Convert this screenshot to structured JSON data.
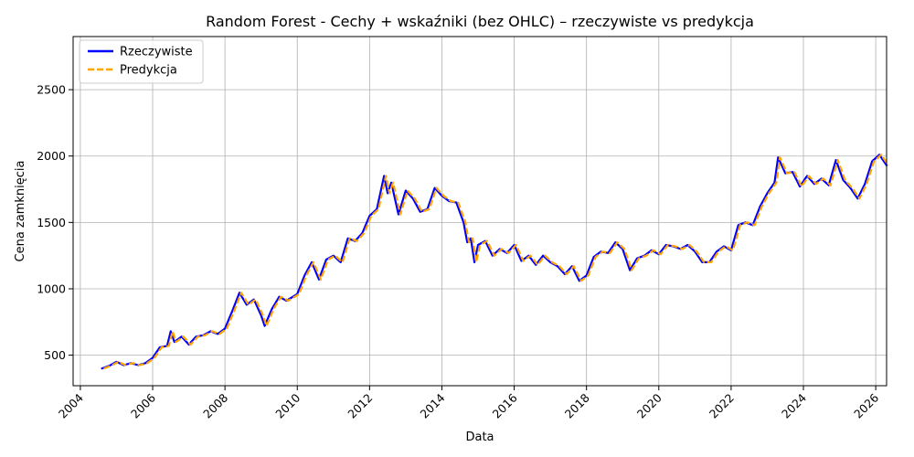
{
  "chart_data": {
    "type": "line",
    "title": "Random Forest - Cechy + wskaźniki (bez OHLC) – rzeczywiste vs predykcja",
    "xlabel": "Data",
    "ylabel": "Cena zamknięcia",
    "xlim": [
      2003.8,
      2026.3
    ],
    "ylim": [
      270,
      2900
    ],
    "x_ticks": [
      2004,
      2006,
      2008,
      2010,
      2012,
      2014,
      2016,
      2018,
      2020,
      2022,
      2024,
      2026
    ],
    "x_tick_labels": [
      "2004",
      "2006",
      "2008",
      "2010",
      "2012",
      "2014",
      "2016",
      "2018",
      "2020",
      "2022",
      "2024",
      "2026"
    ],
    "y_ticks": [
      500,
      1000,
      1500,
      2000,
      2500
    ],
    "y_tick_labels": [
      "500",
      "1000",
      "1500",
      "2000",
      "2500"
    ],
    "grid": true,
    "legend_position": "top-left",
    "series": [
      {
        "name": "Rzeczywiste",
        "color": "#0000ff",
        "style": "solid",
        "points": [
          [
            2004.6,
            400
          ],
          [
            2004.8,
            420
          ],
          [
            2005.0,
            450
          ],
          [
            2005.2,
            425
          ],
          [
            2005.4,
            440
          ],
          [
            2005.6,
            425
          ],
          [
            2005.8,
            440
          ],
          [
            2006.0,
            480
          ],
          [
            2006.2,
            560
          ],
          [
            2006.4,
            570
          ],
          [
            2006.5,
            680
          ],
          [
            2006.6,
            600
          ],
          [
            2006.8,
            640
          ],
          [
            2007.0,
            580
          ],
          [
            2007.2,
            640
          ],
          [
            2007.4,
            650
          ],
          [
            2007.6,
            680
          ],
          [
            2007.8,
            660
          ],
          [
            2008.0,
            700
          ],
          [
            2008.2,
            830
          ],
          [
            2008.4,
            970
          ],
          [
            2008.6,
            880
          ],
          [
            2008.8,
            920
          ],
          [
            2009.0,
            800
          ],
          [
            2009.1,
            720
          ],
          [
            2009.3,
            850
          ],
          [
            2009.5,
            940
          ],
          [
            2009.7,
            910
          ],
          [
            2010.0,
            960
          ],
          [
            2010.2,
            1100
          ],
          [
            2010.4,
            1200
          ],
          [
            2010.6,
            1070
          ],
          [
            2010.8,
            1220
          ],
          [
            2011.0,
            1250
          ],
          [
            2011.2,
            1200
          ],
          [
            2011.4,
            1380
          ],
          [
            2011.6,
            1360
          ],
          [
            2011.8,
            1420
          ],
          [
            2012.0,
            1550
          ],
          [
            2012.2,
            1600
          ],
          [
            2012.4,
            1850
          ],
          [
            2012.5,
            1720
          ],
          [
            2012.6,
            1800
          ],
          [
            2012.8,
            1560
          ],
          [
            2013.0,
            1740
          ],
          [
            2013.2,
            1680
          ],
          [
            2013.4,
            1580
          ],
          [
            2013.6,
            1600
          ],
          [
            2013.8,
            1760
          ],
          [
            2014.0,
            1700
          ],
          [
            2014.2,
            1660
          ],
          [
            2014.4,
            1650
          ],
          [
            2014.6,
            1500
          ],
          [
            2014.7,
            1350
          ],
          [
            2014.8,
            1380
          ],
          [
            2014.9,
            1200
          ],
          [
            2015.0,
            1330
          ],
          [
            2015.2,
            1360
          ],
          [
            2015.4,
            1250
          ],
          [
            2015.6,
            1300
          ],
          [
            2015.8,
            1270
          ],
          [
            2016.0,
            1330
          ],
          [
            2016.2,
            1210
          ],
          [
            2016.4,
            1250
          ],
          [
            2016.6,
            1180
          ],
          [
            2016.8,
            1250
          ],
          [
            2017.0,
            1200
          ],
          [
            2017.2,
            1170
          ],
          [
            2017.4,
            1110
          ],
          [
            2017.6,
            1170
          ],
          [
            2017.8,
            1060
          ],
          [
            2018.0,
            1100
          ],
          [
            2018.2,
            1240
          ],
          [
            2018.4,
            1280
          ],
          [
            2018.6,
            1270
          ],
          [
            2018.8,
            1350
          ],
          [
            2019.0,
            1300
          ],
          [
            2019.2,
            1140
          ],
          [
            2019.4,
            1230
          ],
          [
            2019.6,
            1250
          ],
          [
            2019.8,
            1290
          ],
          [
            2020.0,
            1260
          ],
          [
            2020.2,
            1330
          ],
          [
            2020.4,
            1320
          ],
          [
            2020.6,
            1300
          ],
          [
            2020.8,
            1330
          ],
          [
            2021.0,
            1280
          ],
          [
            2021.2,
            1200
          ],
          [
            2021.4,
            1200
          ],
          [
            2021.6,
            1280
          ],
          [
            2021.8,
            1320
          ],
          [
            2022.0,
            1290
          ],
          [
            2022.2,
            1480
          ],
          [
            2022.4,
            1500
          ],
          [
            2022.6,
            1480
          ],
          [
            2022.8,
            1620
          ],
          [
            2023.0,
            1720
          ],
          [
            2023.2,
            1800
          ],
          [
            2023.3,
            1990
          ],
          [
            2023.5,
            1870
          ],
          [
            2023.7,
            1880
          ],
          [
            2023.9,
            1770
          ],
          [
            2024.1,
            1850
          ],
          [
            2024.3,
            1790
          ],
          [
            2024.5,
            1830
          ],
          [
            2024.7,
            1780
          ],
          [
            2024.9,
            1970
          ],
          [
            2025.1,
            1820
          ],
          [
            2025.3,
            1760
          ],
          [
            2025.5,
            1680
          ],
          [
            2025.7,
            1790
          ],
          [
            2025.9,
            1960
          ],
          [
            2026.1,
            2010
          ],
          [
            2026.3,
            1930
          ]
        ]
      },
      {
        "name": "Predykcja",
        "color": "#ffa500",
        "style": "dashed",
        "points": []
      }
    ]
  },
  "legend": [
    {
      "label": "Rzeczywiste",
      "color": "#0000ff",
      "style": "solid"
    },
    {
      "label": "Predykcja",
      "color": "#ffa500",
      "style": "dashed"
    }
  ]
}
